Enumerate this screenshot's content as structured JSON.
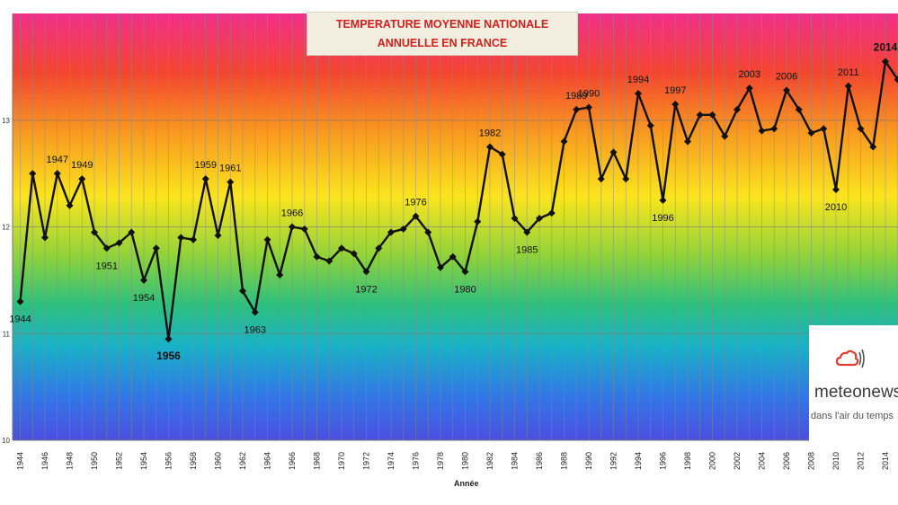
{
  "chart_data": {
    "type": "line",
    "title_lines": [
      "TEMPERATURE MOYENNE NATIONALE",
      "ANNUELLE EN FRANCE"
    ],
    "xlabel": "Année",
    "x": [
      1944,
      1945,
      1946,
      1947,
      1948,
      1949,
      1950,
      1951,
      1952,
      1953,
      1954,
      1955,
      1956,
      1957,
      1958,
      1959,
      1960,
      1961,
      1962,
      1963,
      1964,
      1965,
      1966,
      1967,
      1968,
      1969,
      1970,
      1971,
      1972,
      1973,
      1974,
      1975,
      1976,
      1977,
      1978,
      1979,
      1980,
      1981,
      1982,
      1983,
      1984,
      1985,
      1986,
      1987,
      1988,
      1989,
      1990,
      1991,
      1992,
      1993,
      1994,
      1995,
      1996,
      1997,
      1998,
      1999,
      2000,
      2001,
      2002,
      2003,
      2004,
      2005,
      2006,
      2007,
      2008,
      2009,
      2010,
      2011,
      2012,
      2013,
      2014,
      2015
    ],
    "values": [
      11.3,
      12.5,
      11.9,
      12.5,
      12.2,
      12.45,
      11.95,
      11.8,
      11.85,
      11.95,
      11.5,
      11.8,
      10.95,
      11.9,
      11.88,
      12.45,
      11.92,
      12.42,
      11.4,
      11.2,
      11.88,
      11.55,
      12.0,
      11.98,
      11.72,
      11.68,
      11.8,
      11.75,
      11.58,
      11.8,
      11.95,
      11.98,
      12.1,
      11.95,
      11.62,
      11.72,
      11.58,
      12.05,
      12.75,
      12.68,
      12.08,
      11.95,
      12.08,
      12.13,
      12.8,
      13.1,
      13.12,
      12.45,
      12.7,
      12.45,
      13.25,
      12.95,
      12.25,
      13.15,
      12.8,
      13.05,
      13.05,
      12.85,
      13.1,
      13.3,
      12.9,
      12.92,
      13.28,
      13.1,
      12.88,
      12.92,
      12.35,
      13.32,
      12.92,
      12.75,
      13.55,
      13.38
    ],
    "point_labels": [
      {
        "year": 1944,
        "text": "1944",
        "pos": "below",
        "bold": false
      },
      {
        "year": 1947,
        "text": "1947",
        "pos": "above",
        "bold": false
      },
      {
        "year": 1949,
        "text": "1949",
        "pos": "above",
        "bold": false
      },
      {
        "year": 1951,
        "text": "1951",
        "pos": "below",
        "bold": false
      },
      {
        "year": 1954,
        "text": "1954",
        "pos": "below",
        "bold": false
      },
      {
        "year": 1956,
        "text": "1956",
        "pos": "below",
        "bold": true
      },
      {
        "year": 1959,
        "text": "1959",
        "pos": "above",
        "bold": false
      },
      {
        "year": 1961,
        "text": "1961",
        "pos": "above",
        "bold": false
      },
      {
        "year": 1963,
        "text": "1963",
        "pos": "below",
        "bold": false
      },
      {
        "year": 1966,
        "text": "1966",
        "pos": "above",
        "bold": false
      },
      {
        "year": 1972,
        "text": "1972",
        "pos": "below",
        "bold": false
      },
      {
        "year": 1976,
        "text": "1976",
        "pos": "above",
        "bold": false
      },
      {
        "year": 1980,
        "text": "1980",
        "pos": "below",
        "bold": false
      },
      {
        "year": 1982,
        "text": "1982",
        "pos": "above",
        "bold": false
      },
      {
        "year": 1985,
        "text": "1985",
        "pos": "below",
        "bold": false
      },
      {
        "year": 1989,
        "text": "1989",
        "pos": "above",
        "bold": false
      },
      {
        "year": 1990,
        "text": "1990",
        "pos": "above",
        "bold": false
      },
      {
        "year": 1994,
        "text": "1994",
        "pos": "above",
        "bold": false
      },
      {
        "year": 1996,
        "text": "1996",
        "pos": "below",
        "bold": false
      },
      {
        "year": 1997,
        "text": "1997",
        "pos": "above",
        "bold": false
      },
      {
        "year": 2003,
        "text": "2003",
        "pos": "above",
        "bold": false
      },
      {
        "year": 2006,
        "text": "2006",
        "pos": "above",
        "bold": false
      },
      {
        "year": 2010,
        "text": "2010",
        "pos": "below",
        "bold": false
      },
      {
        "year": 2011,
        "text": "2011",
        "pos": "above",
        "bold": false
      },
      {
        "year": 2014,
        "text": "2014",
        "pos": "above",
        "bold": true
      }
    ],
    "x_tick_labels": [
      "1944",
      "1946",
      "1948",
      "1950",
      "1952",
      "1954",
      "1956",
      "1958",
      "1960",
      "1962",
      "1964",
      "1966",
      "1968",
      "1970",
      "1972",
      "1974",
      "1976",
      "1978",
      "1980",
      "1982",
      "1984",
      "1986",
      "1988",
      "1990",
      "1992",
      "1994",
      "1996",
      "1998",
      "2000",
      "2002",
      "2004",
      "2006",
      "2008",
      "2010",
      "2012",
      "2014"
    ],
    "ylim": [
      10.0,
      14.0
    ],
    "y_ticks": [
      10,
      11,
      12,
      13
    ],
    "grid": true,
    "legend": "none",
    "colors": {
      "line": "#111111",
      "title_text": "#d0201e",
      "gradient": [
        "#f12f8b",
        "#f3462f",
        "#f99a20",
        "#fbe51e",
        "#8ed23b",
        "#2fc07d",
        "#19b1c7",
        "#3276e6",
        "#4b4fe0"
      ]
    }
  },
  "logo": {
    "name": "meteonews",
    "slogan": "dans l'air du temps",
    "icon": "cloud-signal-icon",
    "colors": {
      "cloud": "#e03b2f",
      "waves": "#555555"
    }
  }
}
